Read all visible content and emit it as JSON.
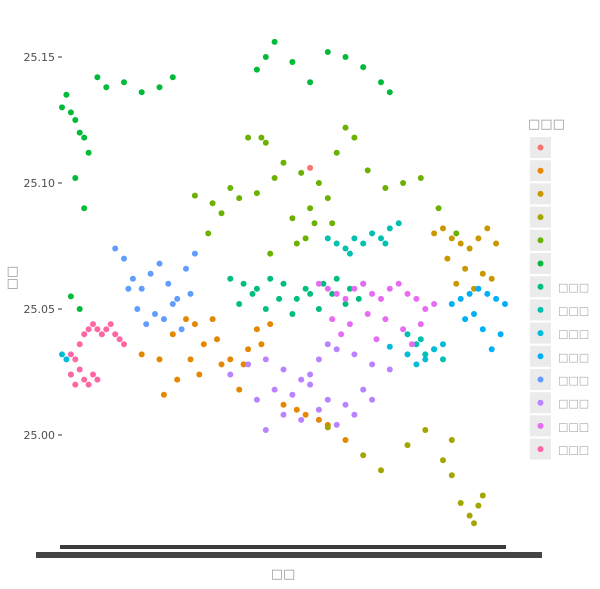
{
  "chart_data": {
    "type": "scatter",
    "title": "",
    "xlabel": "□□",
    "ylabel": "□□",
    "ylim": [
      24.965,
      25.165
    ],
    "yticks": [
      25.0,
      25.05,
      25.1,
      25.15
    ],
    "ytick_labels": [
      "25.00",
      "25.05",
      "25.10",
      "25.15"
    ],
    "grid": false,
    "legend": {
      "title": "□□□",
      "position": "right",
      "entries": [
        {
          "label": "",
          "color": "#F8766D"
        },
        {
          "label": "",
          "color": "#E58700"
        },
        {
          "label": "",
          "color": "#C99800"
        },
        {
          "label": "",
          "color": "#A3A500"
        },
        {
          "label": "",
          "color": "#6BB100"
        },
        {
          "label": "",
          "color": "#00BA38"
        },
        {
          "label": "□□□",
          "color": "#00BF7D"
        },
        {
          "label": "□□□",
          "color": "#00C0AF"
        },
        {
          "label": "□□□",
          "color": "#00BCD8"
        },
        {
          "label": "□□□",
          "color": "#00B0F6"
        },
        {
          "label": "□□□",
          "color": "#619CFF"
        },
        {
          "label": "□□□",
          "color": "#B983FF"
        },
        {
          "label": "□□□",
          "color": "#E76BF3"
        },
        {
          "label": "□□□",
          "color": "#FF67A4"
        }
      ]
    },
    "series": [
      {
        "color": "#F8766D",
        "x": [
          0.56
        ],
        "y": [
          25.106
        ]
      },
      {
        "color": "#E58700",
        "x": [
          0.18,
          0.22,
          0.25,
          0.28,
          0.3,
          0.32,
          0.35,
          0.38,
          0.41,
          0.44,
          0.47,
          0.26,
          0.31,
          0.36,
          0.4,
          0.45,
          0.29,
          0.34,
          0.23,
          0.42,
          0.5,
          0.55,
          0.6,
          0.64,
          0.53,
          0.58
        ],
        "y": [
          25.032,
          25.03,
          25.04,
          25.046,
          25.044,
          25.036,
          25.038,
          25.03,
          25.028,
          25.042,
          25.044,
          25.022,
          25.024,
          25.028,
          25.018,
          25.036,
          25.03,
          25.046,
          25.016,
          25.034,
          25.012,
          25.008,
          25.004,
          24.998,
          25.01,
          25.006
        ]
      },
      {
        "color": "#C99800",
        "x": [
          0.84,
          0.86,
          0.88,
          0.9,
          0.92,
          0.94,
          0.96,
          0.98,
          0.87,
          0.91,
          0.95,
          0.89,
          0.93,
          0.97
        ],
        "y": [
          25.08,
          25.082,
          25.078,
          25.076,
          25.074,
          25.078,
          25.082,
          25.076,
          25.07,
          25.066,
          25.064,
          25.06,
          25.058,
          25.062
        ]
      },
      {
        "color": "#A3A500",
        "x": [
          0.6,
          0.68,
          0.72,
          0.78,
          0.82,
          0.86,
          0.88,
          0.9,
          0.92,
          0.93,
          0.94,
          0.95,
          0.88
        ],
        "y": [
          25.003,
          24.992,
          24.986,
          24.996,
          25.002,
          24.99,
          24.984,
          24.973,
          24.968,
          24.965,
          24.972,
          24.976,
          24.998
        ]
      },
      {
        "color": "#6BB100",
        "x": [
          0.3,
          0.34,
          0.38,
          0.42,
          0.46,
          0.5,
          0.54,
          0.58,
          0.62,
          0.66,
          0.36,
          0.4,
          0.44,
          0.48,
          0.52,
          0.56,
          0.6,
          0.64,
          0.33,
          0.45,
          0.57,
          0.69,
          0.73,
          0.77,
          0.81,
          0.85,
          0.89,
          0.55,
          0.61,
          0.47,
          0.53
        ],
        "y": [
          25.095,
          25.092,
          25.098,
          25.118,
          25.116,
          25.108,
          25.104,
          25.1,
          25.112,
          25.118,
          25.088,
          25.094,
          25.096,
          25.102,
          25.086,
          25.09,
          25.094,
          25.122,
          25.08,
          25.118,
          25.084,
          25.105,
          25.098,
          25.1,
          25.102,
          25.09,
          25.08,
          25.078,
          25.084,
          25.072,
          25.076
        ]
      },
      {
        "color": "#00BA38",
        "x": [
          0.0,
          0.01,
          0.02,
          0.03,
          0.04,
          0.05,
          0.06,
          0.08,
          0.1,
          0.14,
          0.18,
          0.22,
          0.25,
          0.03,
          0.05,
          0.44,
          0.46,
          0.48,
          0.52,
          0.56,
          0.6,
          0.64,
          0.68,
          0.72,
          0.74,
          0.02,
          0.04
        ],
        "y": [
          25.13,
          25.135,
          25.128,
          25.125,
          25.12,
          25.118,
          25.112,
          25.142,
          25.138,
          25.14,
          25.136,
          25.138,
          25.142,
          25.102,
          25.09,
          25.145,
          25.15,
          25.156,
          25.148,
          25.14,
          25.152,
          25.15,
          25.146,
          25.14,
          25.136,
          25.055,
          25.05
        ]
      },
      {
        "color": "#00BF7D",
        "x": [
          0.38,
          0.41,
          0.44,
          0.47,
          0.5,
          0.53,
          0.56,
          0.59,
          0.62,
          0.65,
          0.68,
          0.4,
          0.46,
          0.52,
          0.58,
          0.64,
          0.43,
          0.49,
          0.55,
          0.61,
          0.67
        ],
        "y": [
          25.062,
          25.06,
          25.058,
          25.062,
          25.06,
          25.054,
          25.056,
          25.06,
          25.062,
          25.058,
          25.06,
          25.052,
          25.05,
          25.048,
          25.05,
          25.052,
          25.056,
          25.054,
          25.058,
          25.056,
          25.054
        ]
      },
      {
        "color": "#00C0AF",
        "x": [
          0.6,
          0.62,
          0.64,
          0.66,
          0.68,
          0.7,
          0.72,
          0.74,
          0.76,
          0.78,
          0.8,
          0.82,
          0.84,
          0.86,
          0.65,
          0.73,
          0.81
        ],
        "y": [
          25.078,
          25.076,
          25.074,
          25.078,
          25.076,
          25.08,
          25.078,
          25.082,
          25.084,
          25.04,
          25.036,
          25.032,
          25.034,
          25.03,
          25.072,
          25.076,
          25.038
        ]
      },
      {
        "color": "#00BCD8",
        "x": [
          0.0,
          0.01,
          0.02,
          0.74,
          0.78,
          0.82,
          0.86,
          0.8,
          0.84
        ],
        "y": [
          25.032,
          25.03,
          25.024,
          25.035,
          25.032,
          25.03,
          25.036,
          25.028,
          25.034
        ]
      },
      {
        "color": "#00B0F6",
        "x": [
          0.88,
          0.9,
          0.92,
          0.94,
          0.96,
          0.98,
          1.0,
          0.91,
          0.95,
          0.99,
          0.97,
          0.93
        ],
        "y": [
          25.052,
          25.054,
          25.056,
          25.058,
          25.056,
          25.054,
          25.052,
          25.046,
          25.042,
          25.04,
          25.034,
          25.048
        ]
      },
      {
        "color": "#619CFF",
        "x": [
          0.12,
          0.14,
          0.16,
          0.18,
          0.2,
          0.22,
          0.24,
          0.26,
          0.28,
          0.3,
          0.17,
          0.21,
          0.25,
          0.29,
          0.19,
          0.23,
          0.27,
          0.15
        ],
        "y": [
          25.074,
          25.07,
          25.062,
          25.058,
          25.064,
          25.068,
          25.06,
          25.054,
          25.066,
          25.072,
          25.05,
          25.048,
          25.052,
          25.056,
          25.044,
          25.046,
          25.042,
          25.058
        ]
      },
      {
        "color": "#B983FF",
        "x": [
          0.38,
          0.42,
          0.46,
          0.5,
          0.54,
          0.58,
          0.62,
          0.66,
          0.7,
          0.74,
          0.44,
          0.48,
          0.52,
          0.56,
          0.6,
          0.64,
          0.68,
          0.5,
          0.54,
          0.58,
          0.62,
          0.66,
          0.46,
          0.7,
          0.56,
          0.6
        ],
        "y": [
          25.024,
          25.028,
          25.03,
          25.026,
          25.022,
          25.03,
          25.034,
          25.032,
          25.028,
          25.026,
          25.014,
          25.018,
          25.016,
          25.02,
          25.014,
          25.012,
          25.018,
          25.008,
          25.006,
          25.01,
          25.004,
          25.008,
          25.002,
          25.014,
          25.024,
          25.036
        ]
      },
      {
        "color": "#E76BF3",
        "x": [
          0.58,
          0.6,
          0.62,
          0.64,
          0.66,
          0.68,
          0.7,
          0.72,
          0.74,
          0.76,
          0.78,
          0.8,
          0.82,
          0.84,
          0.61,
          0.65,
          0.69,
          0.73,
          0.77,
          0.81,
          0.63,
          0.71,
          0.79
        ],
        "y": [
          25.06,
          25.058,
          25.056,
          25.054,
          25.058,
          25.06,
          25.056,
          25.054,
          25.058,
          25.06,
          25.056,
          25.054,
          25.05,
          25.052,
          25.046,
          25.044,
          25.048,
          25.046,
          25.042,
          25.044,
          25.04,
          25.038,
          25.036
        ]
      },
      {
        "color": "#FF67A4",
        "x": [
          0.02,
          0.03,
          0.04,
          0.05,
          0.06,
          0.07,
          0.08,
          0.09,
          0.1,
          0.11,
          0.12,
          0.13,
          0.14,
          0.02,
          0.03,
          0.04,
          0.05,
          0.06,
          0.07,
          0.08
        ],
        "y": [
          25.032,
          25.03,
          25.036,
          25.04,
          25.042,
          25.044,
          25.042,
          25.04,
          25.042,
          25.044,
          25.04,
          25.038,
          25.036,
          25.024,
          25.02,
          25.026,
          25.022,
          25.02,
          25.024,
          25.022
        ]
      }
    ]
  }
}
